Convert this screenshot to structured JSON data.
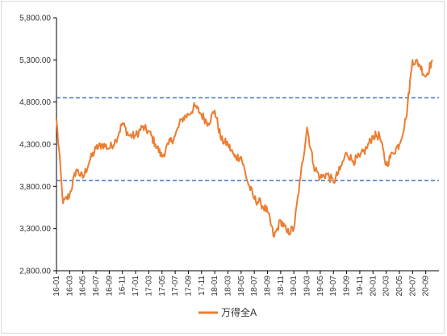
{
  "chart_data": {
    "type": "line",
    "ylim": [
      2800,
      5800
    ],
    "y_ticks": [
      "2,800.00",
      "3,300.00",
      "3,800.00",
      "4,300.00",
      "4,800.00",
      "5,300.00",
      "5,800.00"
    ],
    "y_tick_values": [
      2800,
      3300,
      3800,
      4300,
      4800,
      5300,
      5800
    ],
    "x_ticks": [
      "16-01",
      "16-03",
      "16-05",
      "16-07",
      "16-09",
      "16-11",
      "17-01",
      "17-03",
      "17-05",
      "17-07",
      "17-09",
      "17-11",
      "18-01",
      "18-03",
      "18-05",
      "18-07",
      "18-09",
      "18-11",
      "19-01",
      "19-03",
      "19-05",
      "19-07",
      "19-09",
      "19-11",
      "20-01",
      "20-03",
      "20-05",
      "20-07",
      "20-09"
    ],
    "x_range_months": [
      "2016-01",
      "2020-11"
    ],
    "series": [
      {
        "name": "万得全A",
        "color": "#ed7d31",
        "x": [
          "2016-01",
          "2016-02",
          "2016-03",
          "2016-04",
          "2016-05",
          "2016-06",
          "2016-07",
          "2016-08",
          "2016-09",
          "2016-10",
          "2016-11",
          "2016-12",
          "2017-01",
          "2017-02",
          "2017-03",
          "2017-04",
          "2017-05",
          "2017-06",
          "2017-07",
          "2017-08",
          "2017-09",
          "2017-10",
          "2017-11",
          "2017-12",
          "2018-01",
          "2018-02",
          "2018-03",
          "2018-04",
          "2018-05",
          "2018-06",
          "2018-07",
          "2018-08",
          "2018-09",
          "2018-10",
          "2018-11",
          "2018-12",
          "2019-01",
          "2019-02",
          "2019-03",
          "2019-04",
          "2019-05",
          "2019-06",
          "2019-07",
          "2019-08",
          "2019-09",
          "2019-10",
          "2019-11",
          "2019-12",
          "2020-01",
          "2020-02",
          "2020-03",
          "2020-04",
          "2020-05",
          "2020-06",
          "2020-07",
          "2020-08",
          "2020-09",
          "2020-10"
        ],
        "values": [
          4600,
          3600,
          3700,
          4000,
          3900,
          4100,
          4250,
          4300,
          4250,
          4350,
          4550,
          4400,
          4400,
          4500,
          4450,
          4300,
          4150,
          4300,
          4400,
          4600,
          4650,
          4750,
          4650,
          4550,
          4700,
          4350,
          4300,
          4150,
          4150,
          3850,
          3650,
          3600,
          3500,
          3200,
          3400,
          3250,
          3300,
          3900,
          4500,
          4050,
          3900,
          3950,
          3850,
          4000,
          4200,
          4100,
          4150,
          4250,
          4400,
          4400,
          4050,
          4200,
          4300,
          4600,
          5300,
          5250,
          5100,
          5300
        ],
        "reference_lines": [
          4850,
          3870
        ]
      }
    ],
    "legend_position": "bottom",
    "grid": false
  },
  "legend": {
    "label": "万得全A"
  }
}
